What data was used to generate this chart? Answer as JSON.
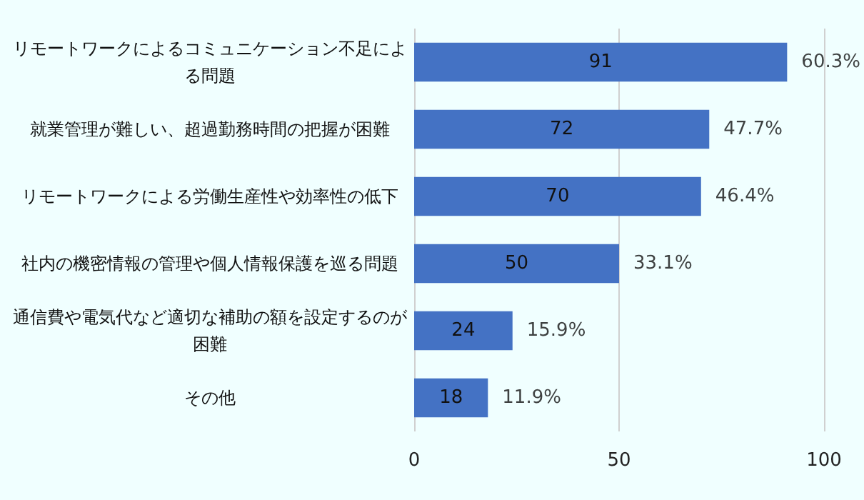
{
  "chart_data": {
    "type": "bar",
    "orientation": "horizontal",
    "categories": [
      "リモートワークによるコミュニケーション不足による問題",
      "就業管理が難しい、超過勤務時間の把握が困難",
      "リモートワークによる労働生産性や効率性の低下",
      "社内の機密情報の管理や個人情報保護を巡る問題",
      "通信費や電気代など適切な補助の額を設定するのが困難",
      "その他"
    ],
    "values": [
      91,
      72,
      70,
      50,
      24,
      18
    ],
    "annotations": [
      {
        "text": "60.3%",
        "x": 91,
        "y": "リモートワークによるコミュニケーション不足による問題"
      },
      {
        "text": "47.7%",
        "x": 72,
        "y": "就業管理が難しい、超過勤務時間の把握が困難"
      },
      {
        "text": "46.4%",
        "x": 70,
        "y": "リモートワークによる労働生産性や効率性の低下"
      },
      {
        "text": "33.1%",
        "x": 50,
        "y": "社内の機密情報の管理や個人情報保護を巡る問題"
      },
      {
        "text": "15.9%",
        "x": 24,
        "y": "通信費や電気代など適切な補助の額を設定するのが困難"
      },
      {
        "text": "11.9%",
        "x": 18,
        "y": "その他"
      }
    ],
    "data_labels": true,
    "color": "#4472c4",
    "xlim": [
      0,
      100
    ],
    "xticks": [
      0,
      50,
      100
    ],
    "grid": "x"
  }
}
